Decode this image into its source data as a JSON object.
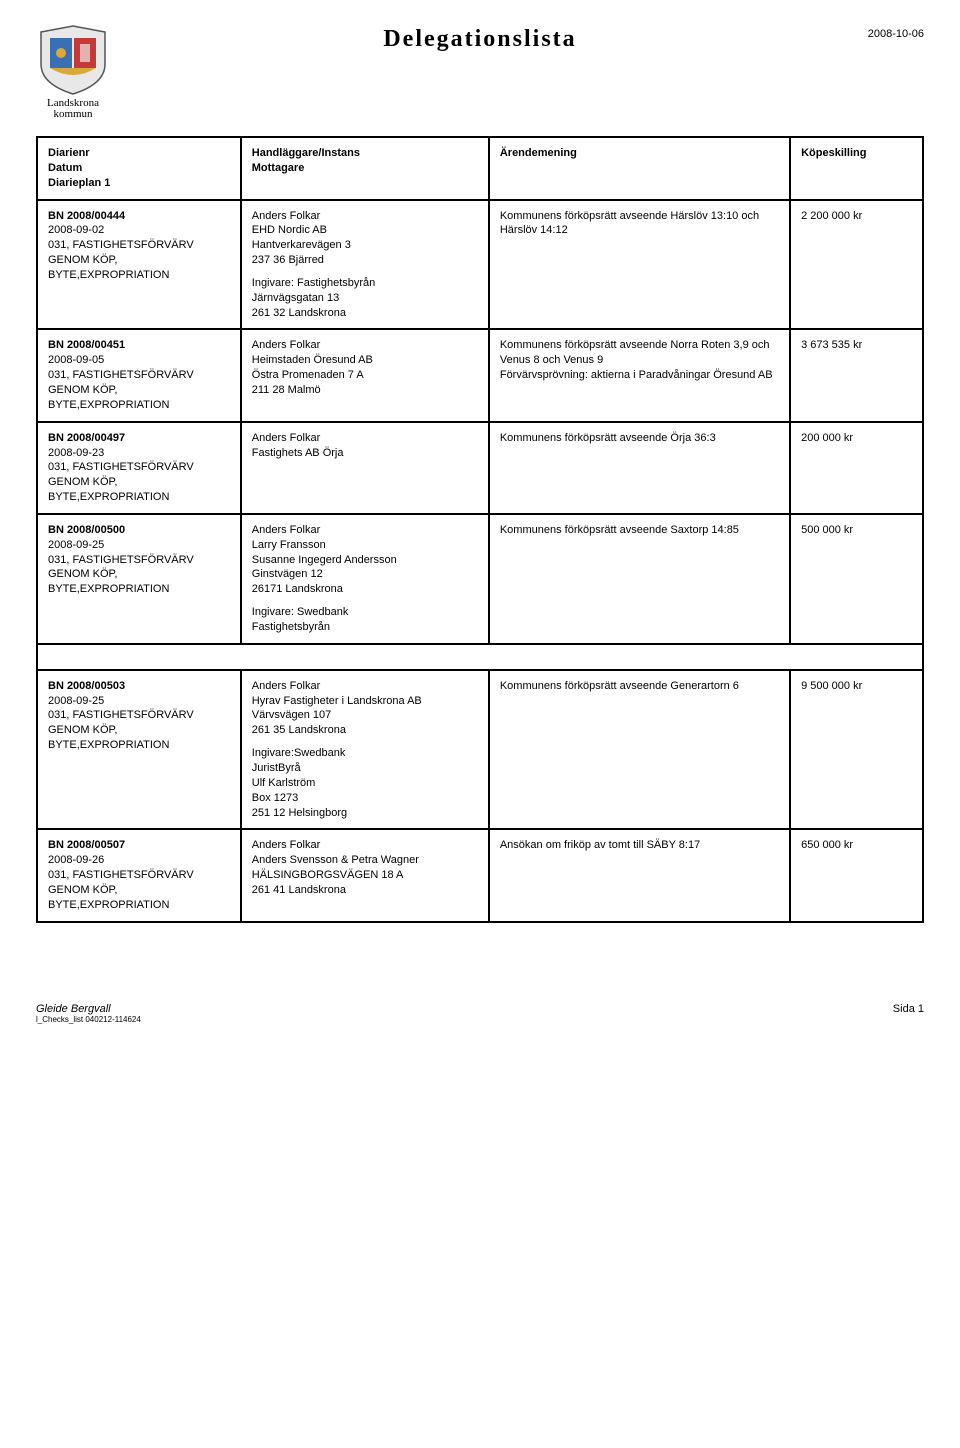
{
  "header": {
    "title": "Delegationslista",
    "date": "2008-10-06",
    "logo_line1": "Landskrona",
    "logo_line2": "kommun"
  },
  "columns": {
    "c1a": "Diarienr",
    "c1b": "Datum",
    "c1c": "Diarieplan 1",
    "c2a": "Handläggare/Instans",
    "c2b": "Mottagare",
    "c3": "Ärendemening",
    "c4": "Köpeskilling"
  },
  "rows": [
    {
      "id": "BN 2008/00444",
      "date": "2008-09-02",
      "plan": "031, FASTIGHETSFÖRVÄRV GENOM KÖP, BYTE,EXPROPRIATION",
      "handler_name": "Anders Folkar",
      "handler_lines": "EHD Nordic AB\nHantverkarevägen 3\n237 36 Bjärred",
      "ingivare": "Ingivare: Fastighetsbyrån\nJärnvägsgatan 13\n261 32 Landskrona",
      "matter": "Kommunens förköpsrätt avseende Härslöv 13:10 och Härslöv 14:12",
      "price": "2 200 000 kr"
    },
    {
      "id": "BN 2008/00451",
      "date": "2008-09-05",
      "plan": "031, FASTIGHETSFÖRVÄRV GENOM KÖP, BYTE,EXPROPRIATION",
      "handler_name": "Anders Folkar",
      "handler_lines": "Heimstaden Öresund AB\nÖstra Promenaden 7 A\n211 28 Malmö",
      "ingivare": "",
      "matter": "Kommunens förköpsrätt avseende Norra Roten 3,9 och Venus 8 och Venus 9\nFörvärvsprövning: aktierna i Paradvåningar Öresund AB",
      "price": "3 673 535 kr"
    },
    {
      "id": "BN 2008/00497",
      "date": "2008-09-23",
      "plan": "031, FASTIGHETSFÖRVÄRV GENOM KÖP, BYTE,EXPROPRIATION",
      "handler_name": "Anders Folkar",
      "handler_lines": "Fastighets AB Örja",
      "ingivare": "",
      "matter": "Kommunens förköpsrätt avseende Örja 36:3",
      "price": "200 000 kr"
    },
    {
      "id": "BN 2008/00500",
      "date": "2008-09-25",
      "plan": "031, FASTIGHETSFÖRVÄRV GENOM KÖP, BYTE,EXPROPRIATION",
      "handler_name": "Anders Folkar",
      "handler_lines": "Larry Fransson\nSusanne Ingegerd Andersson\nGinstvägen 12\n26171 Landskrona",
      "ingivare": "Ingivare: Swedbank\nFastighetsbyrån",
      "matter": "Kommunens förköpsrätt avseende Saxtorp 14:85",
      "price": "500 000 kr"
    },
    {
      "id": "BN 2008/00503",
      "date": "2008-09-25",
      "plan": "031, FASTIGHETSFÖRVÄRV GENOM KÖP, BYTE,EXPROPRIATION",
      "handler_name": "Anders Folkar",
      "handler_lines": "Hyrav Fastigheter i Landskrona AB\nVärvsvägen 107\n261 35 Landskrona",
      "ingivare": "Ingivare:Swedbank\nJuristByrå\nUlf Karlström\nBox 1273\n251 12 Helsingborg",
      "matter": "Kommunens förköpsrätt avseende Generartorn 6",
      "price": "9 500 000 kr"
    },
    {
      "id": "BN 2008/00507",
      "date": "2008-09-26",
      "plan": "031, FASTIGHETSFÖRVÄRV GENOM KÖP, BYTE,EXPROPRIATION",
      "handler_name": "Anders Folkar",
      "handler_lines": "Anders Svensson & Petra Wagner\nHÄLSINGBORGSVÄGEN 18 A\n261 41 Landskrona",
      "ingivare": "",
      "matter": "Ansökan om friköp av tomt till SÄBY 8:17",
      "price": "650 000 kr"
    }
  ],
  "footer": {
    "left_name": "Gleide Bergvall",
    "left_meta": "l_Checks_list 040212-114624",
    "right": "Sida 1"
  }
}
